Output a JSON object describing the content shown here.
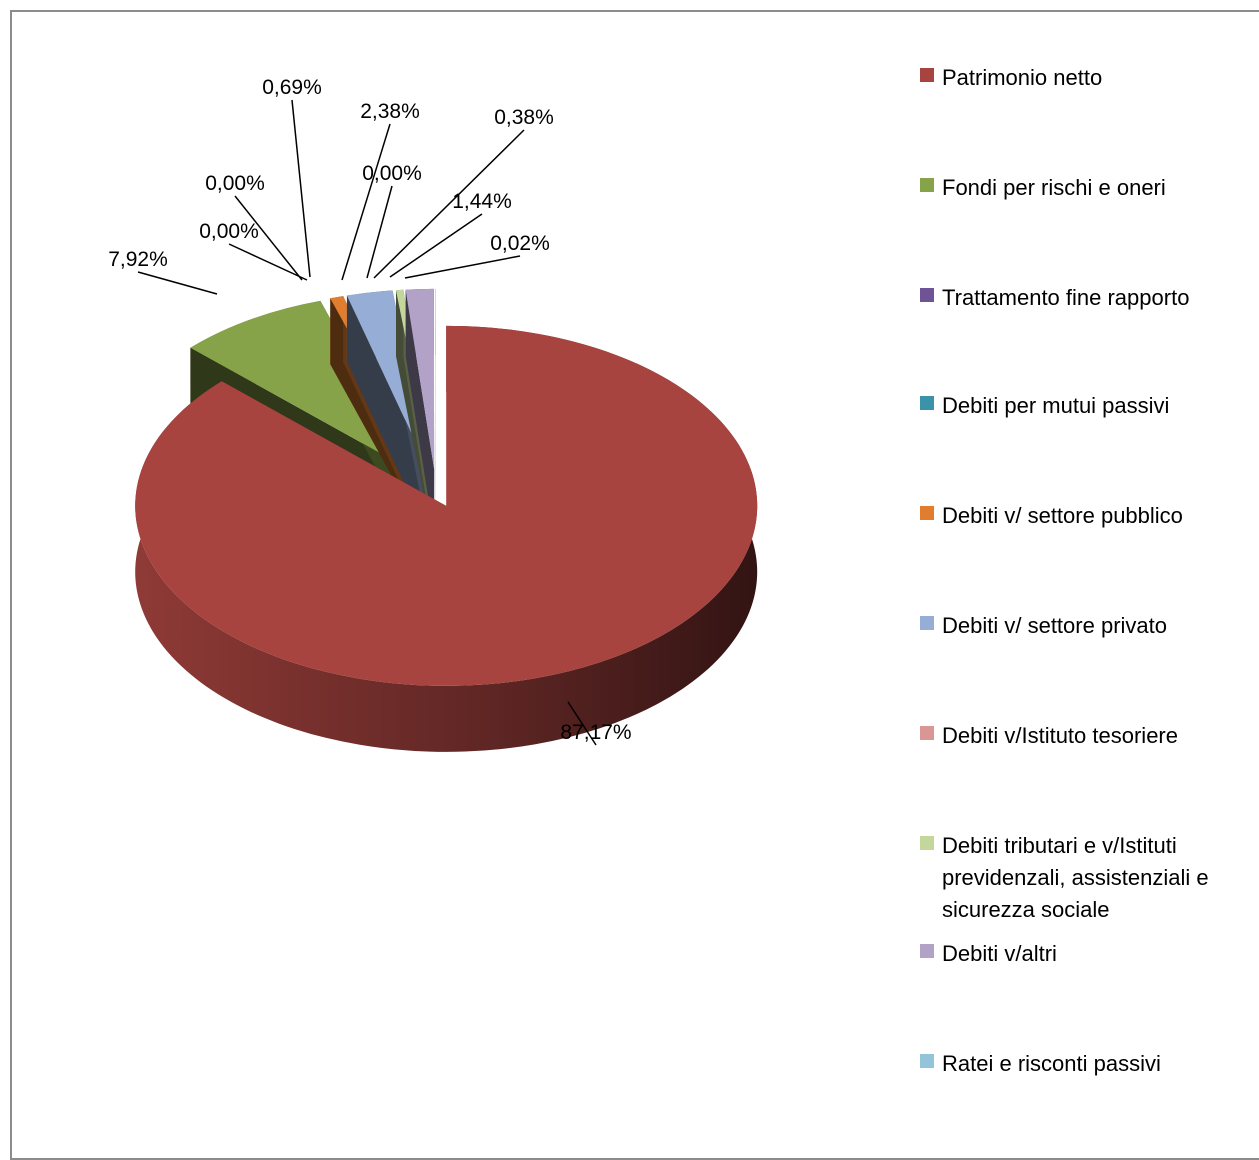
{
  "chart_data": {
    "type": "pie",
    "variant": "3d-exploded",
    "title": "",
    "slices": [
      {
        "label": "Patrimonio netto",
        "value": 87.17,
        "value_label": "87,17%",
        "color": "#A84440"
      },
      {
        "label": "Fondi per rischi e oneri",
        "value": 7.92,
        "value_label": "7,92%",
        "color": "#86A349"
      },
      {
        "label": "Trattamento fine rapporto",
        "value": 0.0,
        "value_label": "0,00%",
        "color": "#6E5396"
      },
      {
        "label": "Debiti per mutui passivi",
        "value": 0.0,
        "value_label": "0,00%",
        "color": "#3A93A9"
      },
      {
        "label": "Debiti v/ settore pubblico",
        "value": 0.69,
        "value_label": "0,69%",
        "color": "#E07D2E"
      },
      {
        "label": "Debiti v/ settore privato",
        "value": 2.38,
        "value_label": "2,38%",
        "color": "#96ADD6"
      },
      {
        "label": "Debiti v/Istituto tesoriere",
        "value": 0.0,
        "value_label": "0,00%",
        "color": "#D99694"
      },
      {
        "label": "Debiti tributari e v/Istituti previdenzali, assistenziali e sicurezza sociale",
        "value": 0.38,
        "value_label": "0,38%",
        "color": "#C3D69B"
      },
      {
        "label": "Debiti v/altri",
        "value": 1.44,
        "value_label": "1,44%",
        "color": "#B2A2C7"
      },
      {
        "label": "Ratei e risconti passivi",
        "value": 0.02,
        "value_label": "0,02%",
        "color": "#93C4DA"
      }
    ],
    "legend_position": "right"
  }
}
